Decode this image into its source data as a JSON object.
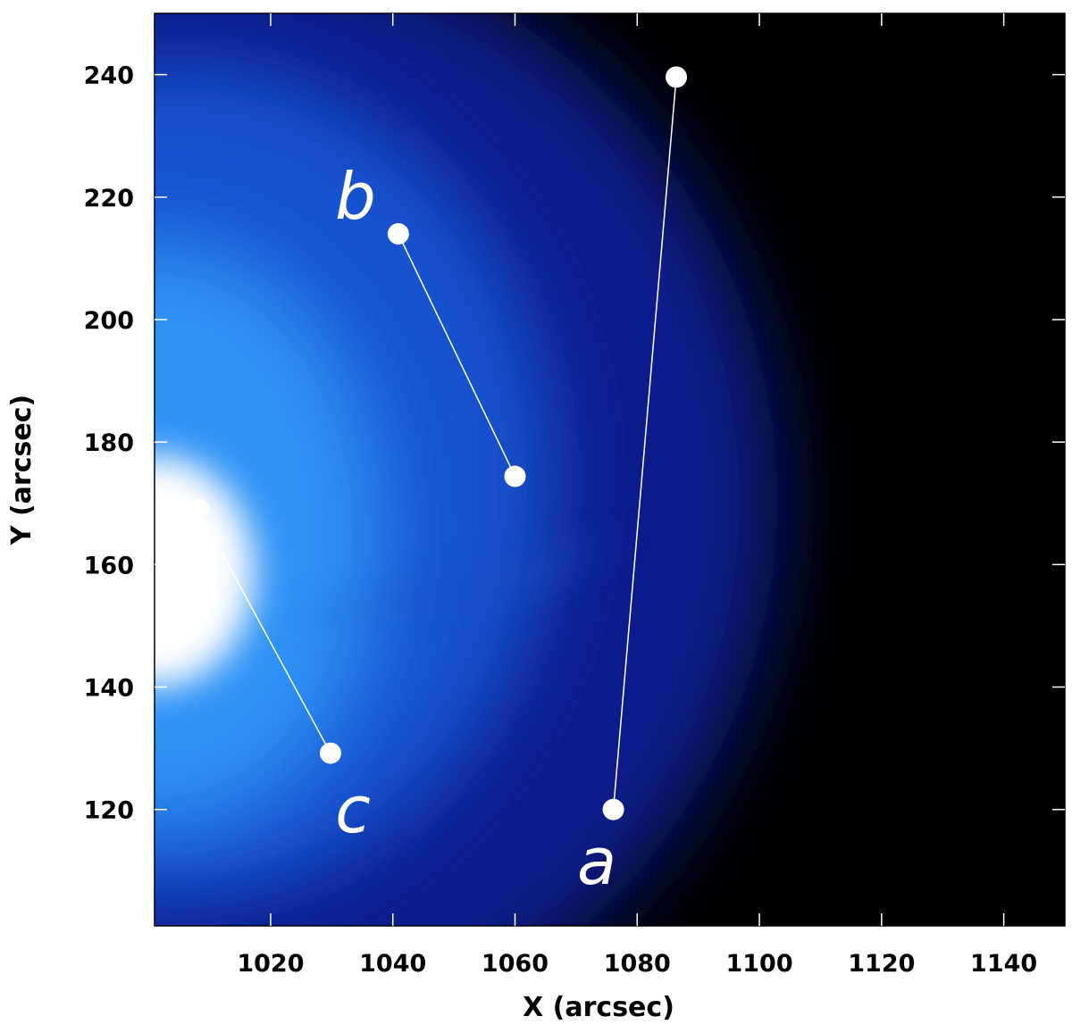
{
  "chart_data": {
    "type": "image",
    "xlabel": "X (arcsec)",
    "ylabel": "Y (arcsec)",
    "xlim": [
      1001,
      1150
    ],
    "ylim": [
      101,
      250
    ],
    "xticks": [
      1020,
      1040,
      1060,
      1080,
      1100,
      1120,
      1140
    ],
    "yticks": [
      120,
      140,
      160,
      180,
      200,
      220,
      240
    ],
    "segment_color": "#ffffff",
    "series": [
      {
        "name": "a",
        "x": [
          1076.1,
          1086.4
        ],
        "y": [
          120,
          239.6
        ]
      },
      {
        "name": "b",
        "x": [
          1040.9,
          1060
        ],
        "y": [
          214.0,
          174.4
        ]
      },
      {
        "name": "c",
        "x": [
          1008.2,
          1029.8
        ],
        "y": [
          169.0,
          129.2
        ]
      }
    ]
  }
}
